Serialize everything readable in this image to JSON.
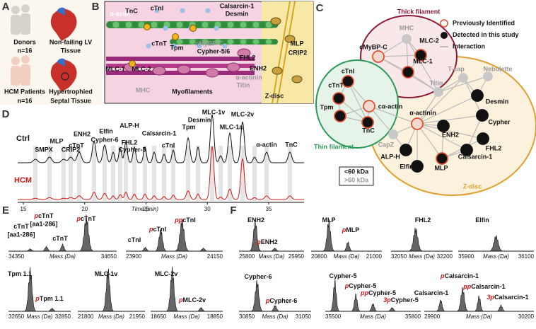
{
  "A": {
    "label": "A",
    "groups": [
      {
        "name": "Donors",
        "n": "n=16",
        "tissue": [
          "Non-failing LV",
          "Tissue"
        ]
      },
      {
        "name": "HCM Patients",
        "n": "n=16",
        "tissue": [
          "Hypertrophied",
          "Septal Tissue"
        ]
      }
    ]
  },
  "B": {
    "label": "B",
    "labels": [
      "α-actin",
      "TnC",
      "cTnI",
      "cTnT",
      "Tpm",
      "MLC-1",
      "MLC-2",
      "MHC",
      "Myofilaments",
      "cMyBP-C",
      "Cypher-5/6",
      "Calsarcin-1",
      "Desmin",
      "FHL2",
      "ENH2",
      "α-actinin",
      "Titin",
      "Z-disc",
      "MLP",
      "CRIP2"
    ]
  },
  "C": {
    "label": "C",
    "groups": [
      "Thick filament",
      "Thin filament",
      "Z-disc"
    ],
    "legend": [
      "Previously Identified",
      "Detected in this study",
      "Interaction"
    ],
    "size_legend": [
      "<60 kDa",
      ">60 kDa"
    ],
    "nodes": [
      "MHC",
      "cMyBP-C",
      "MLC-2",
      "MLC-1",
      "cTnI",
      "cTnT",
      "Tpm",
      "cα-actin",
      "TnC",
      "T-cap",
      "Nebulette",
      "Titin",
      "α-actinin",
      "Desmin",
      "ENH2",
      "Cypher",
      "CapZ",
      "FHL2",
      "ALP-H",
      "Calsarcin-1",
      "Elfin",
      "MLP"
    ]
  },
  "D": {
    "label": "D",
    "rows": [
      "Ctrl",
      "HCM"
    ],
    "peaks": [
      "SMPX",
      "MLP",
      "CRIP2",
      "ENH2",
      "cTnT",
      "Elfin",
      "Cypher-6",
      "ALP-H",
      "Cypher-5",
      "FHL2",
      "Calsarcin-1",
      "cTnI",
      "Tpm",
      "Desmin",
      "MLC-1v",
      "MLC-1a",
      "MLC-2v",
      "α-actin",
      "TnC"
    ],
    "x_label": "Time (min)",
    "x_ticks": [
      15,
      20,
      25,
      30,
      35
    ]
  },
  "E": {
    "label": "E",
    "spectra": [
      {
        "labels": [
          {
            "name": "cTnT",
            "sub": "[aa1-286]"
          },
          {
            "mod": "p",
            "name": "cTnT",
            "sub": "[aa1-286]"
          },
          {
            "name": "cTnT"
          },
          {
            "mod": "p",
            "name": "cTnT"
          }
        ],
        "x_label": "Mass (Da)",
        "x_ticks": [
          34350,
          34650
        ]
      },
      {
        "labels": [
          {
            "name": "cTnI"
          },
          {
            "mod": "p",
            "name": "cTnI"
          },
          {
            "mod": "pp",
            "name": "cTnI"
          }
        ],
        "x_label": "Mass (Da)",
        "x_ticks": [
          23900,
          24150
        ]
      },
      {
        "labels": [
          {
            "name": "Tpm 1.1"
          },
          {
            "mod": "p",
            "name": "Tpm 1.1"
          }
        ],
        "x_label": "Mass (Da)",
        "x_ticks": [
          32650,
          32850
        ]
      },
      {
        "labels": [
          {
            "name": "MLC-1v"
          }
        ],
        "x_label": "Mass (Da)",
        "x_ticks": [
          21800,
          21950
        ]
      },
      {
        "labels": [
          {
            "name": "MLC-2v"
          },
          {
            "mod": "p",
            "name": "MLC-2v"
          }
        ],
        "x_label": "Mass (Da)",
        "x_ticks": [
          18650,
          18850
        ]
      }
    ]
  },
  "F": {
    "label": "F",
    "spectra": [
      {
        "labels": [
          {
            "name": "ENH2"
          },
          {
            "mod": "p",
            "name": "ENH2"
          }
        ],
        "x_label": "Mass (Da)",
        "x_ticks": [
          25800,
          25950
        ]
      },
      {
        "labels": [
          {
            "name": "MLP"
          },
          {
            "mod": "p",
            "name": "MLP"
          }
        ],
        "x_label": "Mass (Da)",
        "x_ticks": [
          20800,
          21000
        ]
      },
      {
        "labels": [
          {
            "name": "FHL2"
          }
        ],
        "x_label": "Mass (Da)",
        "x_ticks": [
          32050,
          32200
        ]
      },
      {
        "labels": [
          {
            "name": "Elfin"
          }
        ],
        "x_label": "Mass (Da)",
        "x_ticks": [
          35900,
          36100
        ]
      },
      {
        "labels": [
          {
            "name": "Cypher-6"
          },
          {
            "mod": "p",
            "name": "Cypher-6"
          }
        ],
        "x_label": "Mass (Da)",
        "x_ticks": [
          30850,
          31050
        ]
      },
      {
        "labels": [
          {
            "name": "Cypher-5"
          },
          {
            "mod": "p",
            "name": "Cypher-5"
          },
          {
            "mod": "pp",
            "name": "Cypher-5"
          },
          {
            "mod": "3p",
            "name": "Cypher-5"
          }
        ],
        "x_label": "Mass (Da)",
        "x_ticks": [
          35500,
          35800
        ]
      },
      {
        "labels": [
          {
            "name": "Calsarcin-1"
          },
          {
            "mod": "p",
            "name": "Calsarcin-1"
          },
          {
            "mod": "pp",
            "name": "Calsarcin-1"
          },
          {
            "mod": "3p",
            "name": "Calsarcin-1"
          }
        ],
        "x_label": "Mass (Da)",
        "x_ticks": [
          29900,
          30200
        ]
      }
    ]
  }
}
